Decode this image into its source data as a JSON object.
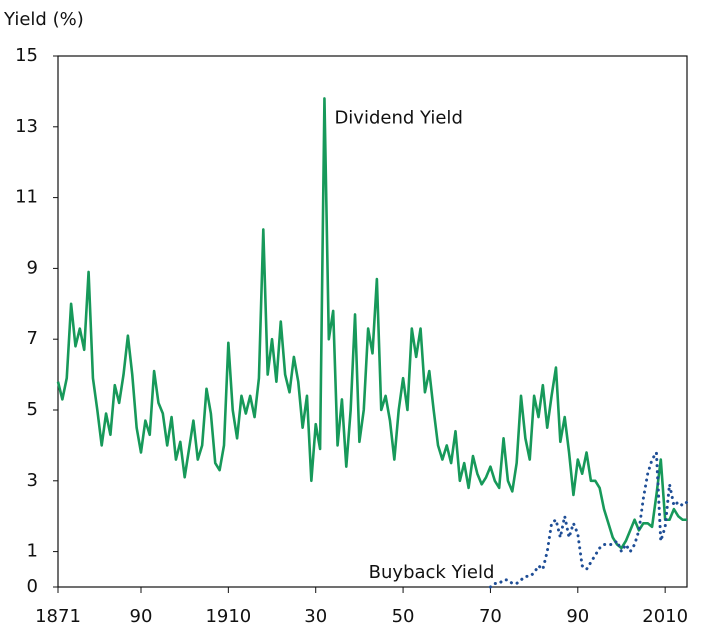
{
  "chart_data": {
    "type": "line",
    "y_label": "Yield (%)",
    "xlim": [
      1871,
      2015
    ],
    "xticks": [
      1871,
      {
        "value": 1890,
        "label": "90"
      },
      1910,
      {
        "value": 1930,
        "label": "30"
      },
      {
        "value": 1950,
        "label": "50"
      },
      {
        "value": 1970,
        "label": "70"
      },
      {
        "value": 1990,
        "label": "90"
      },
      2010
    ],
    "ylim": [
      0,
      15
    ],
    "yticks": [
      0,
      1,
      3,
      5,
      7,
      9,
      11,
      13,
      15
    ],
    "series": [
      {
        "name": "Dividend Yield",
        "color": "#17995a",
        "style": "solid",
        "x": [
          1871,
          1872,
          1873,
          1874,
          1875,
          1876,
          1877,
          1878,
          1879,
          1880,
          1881,
          1882,
          1883,
          1884,
          1885,
          1886,
          1887,
          1888,
          1889,
          1890,
          1891,
          1892,
          1893,
          1894,
          1895,
          1896,
          1897,
          1898,
          1899,
          1900,
          1901,
          1902,
          1903,
          1904,
          1905,
          1906,
          1907,
          1908,
          1909,
          1910,
          1911,
          1912,
          1913,
          1914,
          1915,
          1916,
          1917,
          1918,
          1919,
          1920,
          1921,
          1922,
          1923,
          1924,
          1925,
          1926,
          1927,
          1928,
          1929,
          1930,
          1931,
          1932,
          1933,
          1934,
          1935,
          1936,
          1937,
          1938,
          1939,
          1940,
          1941,
          1942,
          1943,
          1944,
          1945,
          1946,
          1947,
          1948,
          1949,
          1950,
          1951,
          1952,
          1953,
          1954,
          1955,
          1956,
          1957,
          1958,
          1959,
          1960,
          1961,
          1962,
          1963,
          1964,
          1965,
          1966,
          1967,
          1968,
          1969,
          1970,
          1971,
          1972,
          1973,
          1974,
          1975,
          1976,
          1977,
          1978,
          1979,
          1980,
          1981,
          1982,
          1983,
          1984,
          1985,
          1986,
          1987,
          1988,
          1989,
          1990,
          1991,
          1992,
          1993,
          1994,
          1995,
          1996,
          1997,
          1998,
          1999,
          2000,
          2001,
          2002,
          2003,
          2004,
          2005,
          2006,
          2007,
          2008,
          2009,
          2010,
          2011,
          2012,
          2013,
          2014,
          2015
        ],
        "values": [
          5.8,
          5.3,
          5.9,
          8.0,
          6.8,
          7.3,
          6.7,
          8.9,
          5.9,
          5.0,
          4.0,
          4.9,
          4.3,
          5.7,
          5.2,
          6.0,
          7.1,
          6.0,
          4.5,
          3.8,
          4.7,
          4.3,
          6.1,
          5.2,
          4.9,
          4.0,
          4.8,
          3.6,
          4.1,
          3.1,
          3.9,
          4.7,
          3.6,
          4.0,
          5.6,
          4.9,
          3.5,
          3.3,
          4.0,
          6.9,
          5.0,
          4.2,
          5.4,
          4.9,
          5.4,
          4.8,
          5.9,
          10.1,
          6.0,
          7.0,
          5.8,
          7.5,
          6.0,
          5.5,
          6.5,
          5.8,
          4.5,
          5.4,
          3.0,
          4.6,
          3.9,
          13.8,
          7.0,
          7.8,
          4.0,
          5.3,
          3.4,
          5.0,
          7.7,
          4.1,
          5.0,
          7.3,
          6.6,
          8.7,
          5.0,
          5.4,
          4.7,
          3.6,
          5.0,
          5.9,
          5.0,
          7.3,
          6.5,
          7.3,
          5.5,
          6.1,
          5.0,
          4.0,
          3.6,
          4.0,
          3.5,
          4.4,
          3.0,
          3.5,
          2.8,
          3.7,
          3.2,
          2.9,
          3.1,
          3.4,
          3.0,
          2.8,
          4.2,
          3.0,
          2.7,
          3.5,
          5.4,
          4.2,
          3.6,
          5.4,
          4.8,
          5.7,
          4.5,
          5.4,
          6.2,
          4.1,
          4.8,
          3.8,
          2.6,
          3.6,
          3.2,
          3.8,
          3.0,
          3.0,
          2.8,
          2.2,
          1.8,
          1.4,
          1.2,
          1.1,
          1.3,
          1.6,
          1.9,
          1.6,
          1.8,
          1.8,
          1.7,
          2.6,
          3.6,
          1.9,
          1.9,
          2.2,
          2.0,
          1.9,
          1.9
        ]
      },
      {
        "name": "Buyback Yield",
        "color": "#1f4e96",
        "style": "dotted",
        "x": [
          1970,
          1971,
          1972,
          1973,
          1974,
          1975,
          1976,
          1977,
          1978,
          1979,
          1980,
          1981,
          1982,
          1983,
          1984,
          1985,
          1986,
          1987,
          1988,
          1989,
          1990,
          1991,
          1992,
          1993,
          1994,
          1995,
          1996,
          1997,
          1998,
          1999,
          2000,
          2001,
          2002,
          2003,
          2004,
          2005,
          2006,
          2007,
          2008,
          2009,
          2010,
          2011,
          2012,
          2013,
          2014,
          2015
        ],
        "values": [
          0.0,
          0.1,
          0.1,
          0.2,
          0.2,
          0.1,
          0.1,
          0.2,
          0.3,
          0.3,
          0.4,
          0.6,
          0.5,
          1.0,
          1.8,
          1.9,
          1.4,
          2.0,
          1.4,
          1.8,
          1.5,
          0.6,
          0.5,
          0.7,
          0.9,
          1.1,
          1.2,
          1.2,
          1.2,
          1.3,
          1.0,
          1.2,
          1.0,
          1.2,
          1.6,
          2.5,
          3.2,
          3.6,
          3.8,
          1.3,
          1.7,
          2.9,
          2.3,
          2.4,
          2.3,
          2.4
        ]
      }
    ]
  }
}
